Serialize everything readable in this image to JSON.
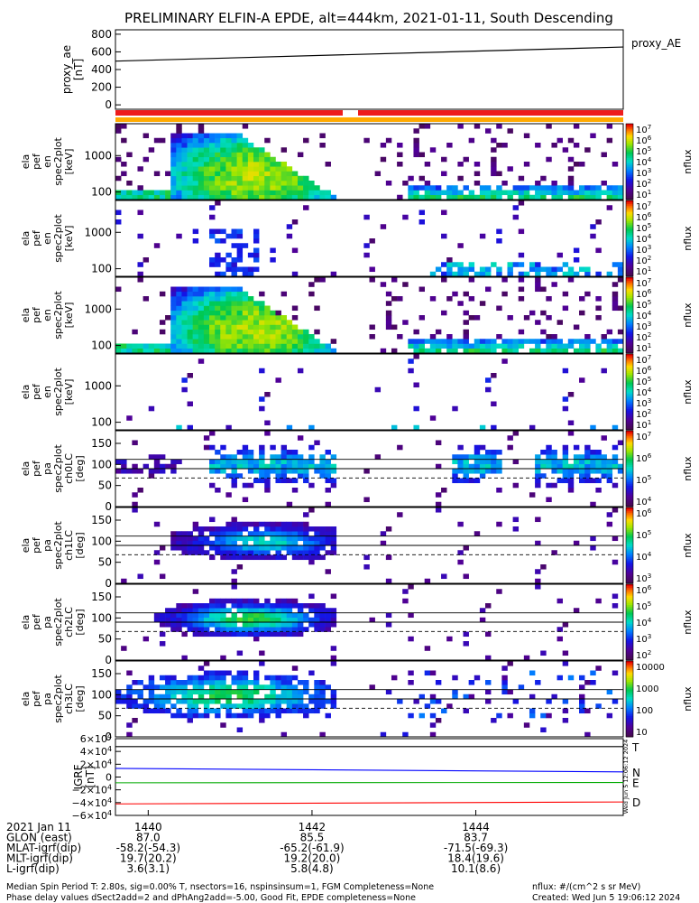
{
  "title": "PRELIMINARY ELFIN-A EPDE, alt=444km, 2021-01-11, South Descending",
  "chart_data": [
    {
      "type": "line",
      "name": "proxy_ae",
      "ylabel": [
        "proxy_ae",
        "[nT]"
      ],
      "legend": "proxy_AE",
      "yticks": [
        "800",
        "600",
        "400",
        "200",
        "0"
      ],
      "ylim": [
        -50,
        850
      ],
      "x": [
        1439.6,
        1445.8
      ],
      "y": [
        495,
        655
      ]
    },
    {
      "type": "heatmap",
      "name": "elx_pef_en_spec2plot_omni",
      "ylabel": [
        "ela",
        "pef",
        "en",
        "spec2plot",
        "[keV]"
      ],
      "yticks": [
        "1000",
        "100"
      ],
      "colorbar": {
        "label": "nflux",
        "ticks": [
          "10^7",
          "10^6",
          "10^5",
          "10^4",
          "10^3",
          "10^2",
          "10^1"
        ]
      }
    },
    {
      "type": "heatmap",
      "name": "elx_pef_en_spec2plot_anti",
      "ylabel": [
        "ela",
        "pef",
        "en",
        "spec2plot",
        "[keV]"
      ],
      "yticks": [
        "1000",
        "100"
      ],
      "colorbar": {
        "label": "nflux",
        "ticks": [
          "10^7",
          "10^6",
          "10^5",
          "10^4",
          "10^3",
          "10^2",
          "10^1"
        ]
      }
    },
    {
      "type": "heatmap",
      "name": "elx_pef_en_spec2plot_perp",
      "ylabel": [
        "ela",
        "pef",
        "en",
        "spec2plot",
        "[keV]"
      ],
      "yticks": [
        "1000",
        "100"
      ],
      "colorbar": {
        "label": "nflux",
        "ticks": [
          "10^7",
          "10^6",
          "10^5",
          "10^4",
          "10^3",
          "10^2",
          "10^1"
        ]
      }
    },
    {
      "type": "heatmap",
      "name": "elx_pef_en_spec2plot_para",
      "ylabel": [
        "ela",
        "pef",
        "en",
        "spec2plot",
        "[keV]"
      ],
      "yticks": [
        "1000",
        "100"
      ],
      "colorbar": {
        "label": "nflux",
        "ticks": [
          "10^7",
          "10^6",
          "10^5",
          "10^4",
          "10^3",
          "10^2",
          "10^1"
        ]
      }
    },
    {
      "type": "heatmap",
      "name": "elx_pef_pa_spec2plot_ch0LC",
      "ylabel": [
        "ela",
        "pef",
        "pa",
        "spec2plot",
        "ch0LC",
        "[deg]"
      ],
      "yticks": [
        "150",
        "100",
        "50",
        "0"
      ],
      "colorbar": {
        "label": "nflux",
        "ticks": [
          "10^7",
          "10^6",
          "10^5",
          "10^4"
        ]
      }
    },
    {
      "type": "heatmap",
      "name": "elx_pef_pa_spec2plot_ch1LC",
      "ylabel": [
        "ela",
        "pef",
        "pa",
        "spec2plot",
        "ch1LC",
        "[deg]"
      ],
      "yticks": [
        "150",
        "100",
        "50",
        "0"
      ],
      "colorbar": {
        "label": "nflux",
        "ticks": [
          "10^6",
          "10^5",
          "10^4",
          "10^3"
        ]
      }
    },
    {
      "type": "heatmap",
      "name": "elx_pef_pa_spec2plot_ch2LC",
      "ylabel": [
        "ela",
        "pef",
        "pa",
        "spec2plot",
        "ch2LC",
        "[deg]"
      ],
      "yticks": [
        "150",
        "100",
        "50",
        "0"
      ],
      "colorbar": {
        "label": "nflux",
        "ticks": [
          "10^6",
          "10^5",
          "10^4",
          "10^3",
          "10^2"
        ]
      }
    },
    {
      "type": "heatmap",
      "name": "elx_pef_pa_spec2plot_ch3LC",
      "ylabel": [
        "ela",
        "pef",
        "pa",
        "spec2plot",
        "ch3LC",
        "[deg]"
      ],
      "yticks": [
        "150",
        "100",
        "50",
        "0"
      ],
      "colorbar": {
        "label": "nflux",
        "ticks": [
          "10000",
          "1000",
          "100",
          "10"
        ]
      }
    },
    {
      "type": "line",
      "name": "IGRF",
      "ylabel": [
        "IGRF",
        "[nT]"
      ],
      "yticks": [
        "6×10^4",
        "4×10^4",
        "2×10^4",
        "0",
        "−2×10^4",
        "−4×10^4",
        "−6×10^4"
      ],
      "ylim": [
        -60000,
        60000
      ],
      "series": [
        {
          "name": "T",
          "color": "#000000",
          "x": [
            1439.6,
            1445.8
          ],
          "y": [
            47500,
            47500
          ]
        },
        {
          "name": "N",
          "color": "#0000ff",
          "x": [
            1439.6,
            1445.8
          ],
          "y": [
            13500,
            8000
          ]
        },
        {
          "name": "E",
          "color": "#00aa00",
          "x": [
            1439.6,
            1445.8
          ],
          "y": [
            -9000,
            -8500
          ]
        },
        {
          "name": "D",
          "color": "#ff0000",
          "x": [
            1439.6,
            1445.8
          ],
          "y": [
            -42000,
            -39000
          ]
        }
      ],
      "timestamp": "Wed Jun 5 12:06:12 2024"
    }
  ],
  "xaxis": {
    "x_range": [
      1439.6,
      1445.8
    ],
    "rows": [
      {
        "label": "2021 Jan 11",
        "values": [
          "1440",
          "1442",
          "1444"
        ]
      },
      {
        "label": "GLON (east)",
        "values": [
          "87.0",
          "85.5",
          "83.7"
        ]
      },
      {
        "label": "MLAT-igrf(dip)",
        "values": [
          "-58.2(-54.3)",
          "-65.2(-61.9)",
          "-71.5(-69.3)"
        ]
      },
      {
        "label": "MLT-igrf(dip)",
        "values": [
          "19.7(20.2)",
          "19.2(20.0)",
          "18.4(19.6)"
        ]
      },
      {
        "label": "L-igrf(dip)",
        "values": [
          "3.6(3.1)",
          "5.8(4.8)",
          "10.1(8.6)"
        ]
      }
    ]
  },
  "footer": {
    "line1": "Median Spin Period T: 2.80s, sig=0.00% T, nsectors=16, nspinsinsum=1, FGM Completeness=None",
    "line2": "Phase delay values dSect2add=2 and dPhAng2add=-5.00, Good Fit, EPDE completeness=None",
    "units": "nflux: #/(cm^2 s sr MeV)",
    "created": "Created: Wed Jun  5 19:06:12 2024"
  },
  "colors": {
    "red_bar": "#ee1c1c",
    "orange_bar": "#ffaa00"
  }
}
